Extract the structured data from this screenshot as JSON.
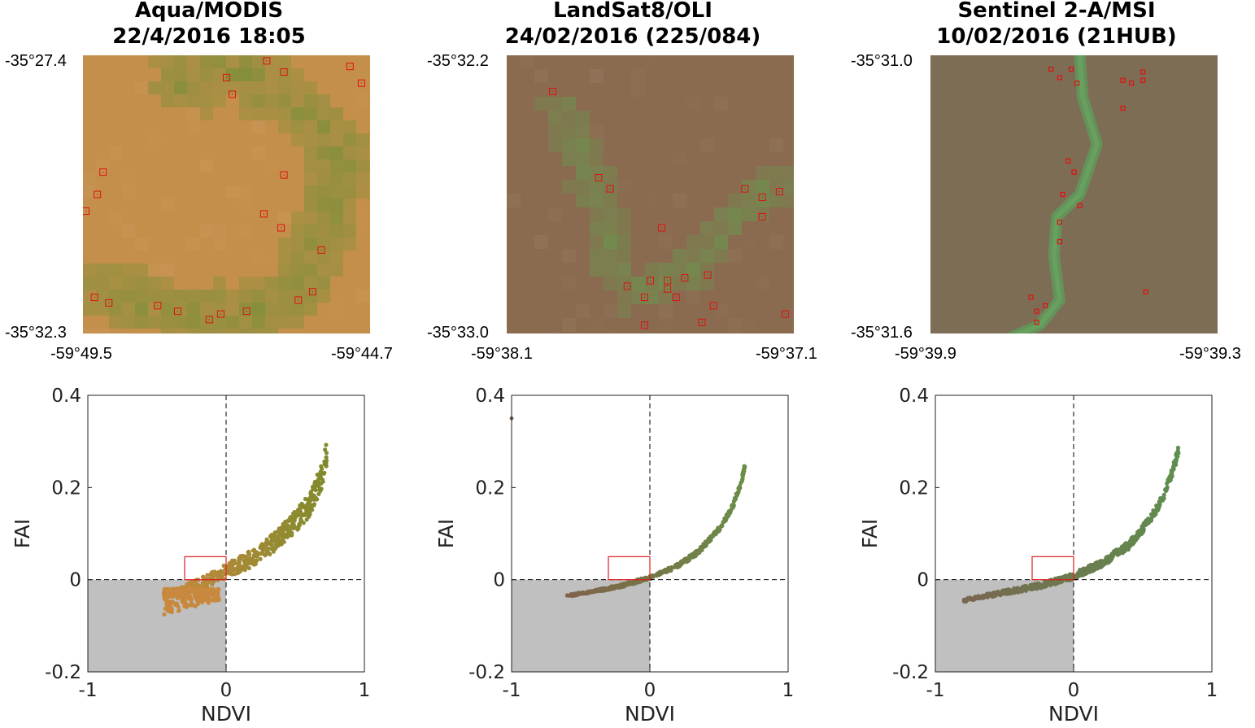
{
  "colors": {
    "marker": "#e01010",
    "shade": "#c0c0c0",
    "box": "#e02020"
  },
  "panels": [
    {
      "title_line1": "Aqua/MODIS",
      "title_line2": "22/4/2016 18:05",
      "lat_top": "-35°27.4",
      "lat_bottom": "-35°32.3",
      "lon_left": "-59°49.5",
      "lon_right": "-59°44.7",
      "map_base_color": "#c48f4b",
      "map_veg_color": "#7f8f3a",
      "map_style": "pixelated",
      "chart_data": {
        "type": "scatter",
        "xlabel": "NDVI",
        "ylabel": "FAI",
        "xlim": [
          -1,
          1
        ],
        "ylim": [
          -0.2,
          0.4
        ],
        "x_ticks": [
          "-1",
          "0",
          "1"
        ],
        "y_ticks": [
          "-0.2",
          "0",
          "0.2",
          "0.4"
        ],
        "grid": false,
        "reference_lines": {
          "x": 0,
          "y": 0
        },
        "shaded_quadrant": {
          "x": [
            -1,
            0
          ],
          "y": [
            -0.2,
            0
          ]
        },
        "threshold_box": {
          "x": [
            -0.3,
            0
          ],
          "y": [
            0,
            0.05
          ]
        },
        "color_start": "#c8893e",
        "color_end": "#7f8a2c",
        "curve": [
          [
            -0.45,
            -0.035
          ],
          [
            -0.3,
            -0.02
          ],
          [
            -0.15,
            -0.005
          ],
          [
            0,
            0.02
          ],
          [
            0.15,
            0.04
          ],
          [
            0.3,
            0.07
          ],
          [
            0.45,
            0.11
          ],
          [
            0.6,
            0.16
          ],
          [
            0.7,
            0.23
          ],
          [
            0.73,
            0.28
          ]
        ],
        "spread": 0.018,
        "low_cloud": {
          "x": [
            -0.45,
            -0.05
          ],
          "y": [
            -0.08,
            -0.02
          ]
        },
        "n_points": 520
      }
    },
    {
      "title_line1": "LandSat8/OLI",
      "title_line2": "24/02/2016 (225/084)",
      "lat_top": "-35°32.2",
      "lat_bottom": "-35°33.0",
      "lon_left": "-59°38.1",
      "lon_right": "-59°37.1",
      "map_base_color": "#8a6b4f",
      "map_veg_color": "#6f8f4f",
      "map_style": "pixelated",
      "chart_data": {
        "type": "scatter",
        "xlabel": "NDVI",
        "ylabel": "FAI",
        "xlim": [
          -1,
          1
        ],
        "ylim": [
          -0.2,
          0.4
        ],
        "x_ticks": [
          "-1",
          "0",
          "1"
        ],
        "y_ticks": [
          "-0.2",
          "0",
          "0.2",
          "0.4"
        ],
        "grid": false,
        "reference_lines": {
          "x": 0,
          "y": 0
        },
        "shaded_quadrant": {
          "x": [
            -1,
            0
          ],
          "y": [
            -0.2,
            0
          ]
        },
        "threshold_box": {
          "x": [
            -0.3,
            0
          ],
          "y": [
            0,
            0.05
          ]
        },
        "color_start": "#80624a",
        "color_end": "#6a8e48",
        "curve": [
          [
            -0.6,
            -0.035
          ],
          [
            -0.4,
            -0.025
          ],
          [
            -0.2,
            -0.013
          ],
          [
            0,
            0.005
          ],
          [
            0.2,
            0.03
          ],
          [
            0.35,
            0.06
          ],
          [
            0.5,
            0.11
          ],
          [
            0.6,
            0.16
          ],
          [
            0.66,
            0.21
          ],
          [
            0.69,
            0.25
          ]
        ],
        "spread": 0.004,
        "low_cloud": null,
        "outlier": [
          -1,
          0.35
        ],
        "n_points": 460
      }
    },
    {
      "title_line1": "Sentinel 2-A/MSI",
      "title_line2": "10/02/2016 (21HUB)",
      "lat_top": "-35°31.0",
      "lat_bottom": "-35°31.6",
      "lon_left": "-59°39.9",
      "lon_right": "-59°39.3",
      "map_base_color": "#7e6d55",
      "map_veg_color": "#5f9a5a",
      "map_style": "smooth",
      "chart_data": {
        "type": "scatter",
        "xlabel": "NDVI",
        "ylabel": "FAI",
        "xlim": [
          -1,
          1
        ],
        "ylim": [
          -0.2,
          0.4
        ],
        "x_ticks": [
          "-1",
          "0",
          "1"
        ],
        "y_ticks": [
          "-0.2",
          "0",
          "0.2",
          "0.4"
        ],
        "grid": false,
        "reference_lines": {
          "x": 0,
          "y": 0
        },
        "shaded_quadrant": {
          "x": [
            -1,
            0
          ],
          "y": [
            -0.2,
            0
          ]
        },
        "threshold_box": {
          "x": [
            -0.3,
            0
          ],
          "y": [
            0,
            0.05
          ]
        },
        "color_start": "#7a6650",
        "color_end": "#5e8f4f",
        "curve": [
          [
            -0.8,
            -0.045
          ],
          [
            -0.6,
            -0.033
          ],
          [
            -0.4,
            -0.022
          ],
          [
            -0.2,
            -0.01
          ],
          [
            0,
            0.008
          ],
          [
            0.2,
            0.035
          ],
          [
            0.4,
            0.075
          ],
          [
            0.55,
            0.13
          ],
          [
            0.65,
            0.18
          ],
          [
            0.72,
            0.24
          ],
          [
            0.76,
            0.28
          ]
        ],
        "spread": 0.007,
        "low_cloud": null,
        "n_points": 600
      }
    }
  ]
}
